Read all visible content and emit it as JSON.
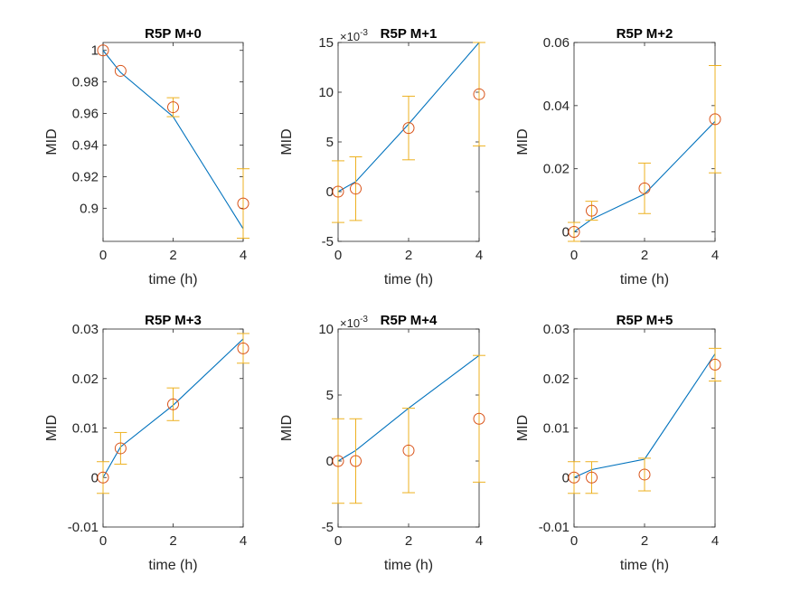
{
  "chart_data": [
    {
      "type": "line",
      "title": "R5P M+0",
      "xlabel": "time (h)",
      "ylabel": "MID",
      "xlim": [
        0,
        4.0
      ],
      "ylim": [
        0.879,
        1.005
      ],
      "xticks": [
        0,
        2,
        4
      ],
      "yticks": [
        0.9,
        0.92,
        0.94,
        0.96,
        0.98,
        1
      ],
      "ytick_labels": [
        "0.9",
        "0.92",
        "0.94",
        "0.96",
        "0.98",
        "1"
      ],
      "scale_exponent": "",
      "model": {
        "x": [
          0,
          0.5,
          2,
          4
        ],
        "y": [
          1.0,
          0.986,
          0.958,
          0.887
        ]
      },
      "data": {
        "x": [
          0,
          0.5,
          2,
          4
        ],
        "y": [
          1.0,
          0.987,
          0.964,
          0.903
        ],
        "err": [
          0.0,
          0.0,
          0.006,
          0.022
        ]
      }
    },
    {
      "type": "line",
      "title": "R5P M+1",
      "xlabel": "time (h)",
      "ylabel": "MID",
      "xlim": [
        0,
        4.0
      ],
      "ylim": [
        -5,
        15
      ],
      "xticks": [
        0,
        2,
        4
      ],
      "yticks": [
        -5,
        0,
        5,
        10,
        15
      ],
      "ytick_labels": [
        "-5",
        "0",
        "5",
        "10",
        "15"
      ],
      "scale_exponent": "-3",
      "model": {
        "x": [
          0,
          0.5,
          2,
          4
        ],
        "y": [
          0.0,
          1.0,
          6.8,
          15.0
        ]
      },
      "data": {
        "x": [
          0,
          0.5,
          2,
          4
        ],
        "y": [
          0.0,
          0.3,
          6.4,
          9.8
        ],
        "err": [
          3.1,
          3.2,
          3.2,
          5.2
        ]
      }
    },
    {
      "type": "line",
      "title": "R5P M+2",
      "xlabel": "time (h)",
      "ylabel": "MID",
      "xlim": [
        0,
        4.0
      ],
      "ylim": [
        -0.003,
        0.06
      ],
      "xticks": [
        0,
        2,
        4
      ],
      "yticks": [
        0,
        0.02,
        0.04,
        0.06
      ],
      "ytick_labels": [
        "0",
        "0.02",
        "0.04",
        "0.06"
      ],
      "scale_exponent": "",
      "model": {
        "x": [
          0,
          0.5,
          2,
          4
        ],
        "y": [
          0.0,
          0.004,
          0.012,
          0.035
        ]
      },
      "data": {
        "x": [
          0,
          0.5,
          2,
          4
        ],
        "y": [
          0.0,
          0.0067,
          0.0138,
          0.0357
        ],
        "err": [
          0.003,
          0.003,
          0.008,
          0.017
        ]
      }
    },
    {
      "type": "line",
      "title": "R5P M+3",
      "xlabel": "time (h)",
      "ylabel": "MID",
      "xlim": [
        0,
        4.0
      ],
      "ylim": [
        -0.01,
        0.03
      ],
      "xticks": [
        0,
        2,
        4
      ],
      "yticks": [
        -0.01,
        0,
        0.01,
        0.02,
        0.03
      ],
      "ytick_labels": [
        "-0.01",
        "0",
        "0.01",
        "0.02",
        "0.03"
      ],
      "scale_exponent": "",
      "model": {
        "x": [
          0,
          0.5,
          2,
          4
        ],
        "y": [
          0.0,
          0.0062,
          0.0146,
          0.028
        ]
      },
      "data": {
        "x": [
          0,
          0.5,
          2,
          4
        ],
        "y": [
          0.0,
          0.0059,
          0.0148,
          0.0261
        ],
        "err": [
          0.0032,
          0.0032,
          0.0033,
          0.003
        ]
      }
    },
    {
      "type": "line",
      "title": "R5P M+4",
      "xlabel": "time (h)",
      "ylabel": "MID",
      "xlim": [
        0,
        4.0
      ],
      "ylim": [
        -5,
        10
      ],
      "xticks": [
        0,
        2,
        4
      ],
      "yticks": [
        -5,
        0,
        5,
        10
      ],
      "ytick_labels": [
        "-5",
        "0",
        "5",
        "10"
      ],
      "scale_exponent": "-3",
      "model": {
        "x": [
          0,
          0.5,
          2,
          4
        ],
        "y": [
          0.0,
          0.8,
          4.0,
          8.0
        ]
      },
      "data": {
        "x": [
          0,
          0.5,
          2,
          4
        ],
        "y": [
          0.0,
          0.0,
          0.8,
          3.2
        ],
        "err": [
          3.2,
          3.2,
          3.2,
          4.8
        ]
      }
    },
    {
      "type": "line",
      "title": "R5P M+5",
      "xlabel": "time (h)",
      "ylabel": "MID",
      "xlim": [
        0,
        4.0
      ],
      "ylim": [
        -0.01,
        0.03
      ],
      "xticks": [
        0,
        2,
        4
      ],
      "yticks": [
        -0.01,
        0,
        0.01,
        0.02,
        0.03
      ],
      "ytick_labels": [
        "-0.01",
        "0",
        "0.01",
        "0.02",
        "0.03"
      ],
      "scale_exponent": "",
      "model": {
        "x": [
          0,
          0.5,
          2,
          4
        ],
        "y": [
          0.0,
          0.0016,
          0.0037,
          0.025
        ]
      },
      "data": {
        "x": [
          0,
          0.5,
          2,
          4
        ],
        "y": [
          0.0,
          0.0,
          0.0006,
          0.0228
        ],
        "err": [
          0.0032,
          0.0032,
          0.0033,
          0.0033
        ]
      }
    }
  ],
  "colors": {
    "model_line": "#0072BD",
    "data_marker": "#D95319",
    "error_bar": "#EDB120",
    "axes": "#262626"
  }
}
